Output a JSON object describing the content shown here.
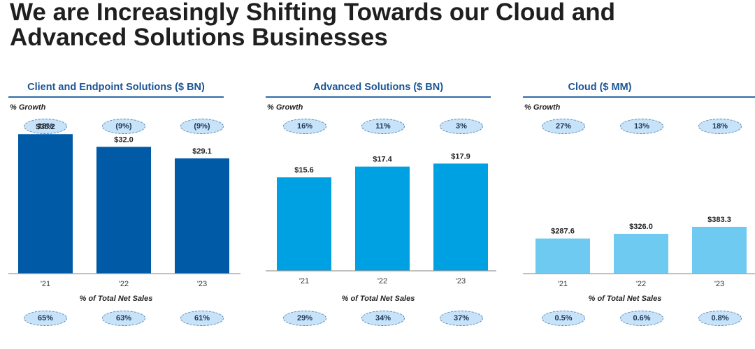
{
  "page": {
    "title_line1": "We are Increasingly Shifting Towards our Cloud and",
    "title_line2": "Advanced Solutions Businesses"
  },
  "labels": {
    "growth": "% Growth",
    "share": "% of Total Net Sales"
  },
  "colors": {
    "title_blue": "#1b5596",
    "client_bar": "#005aa6",
    "advanced_bar": "#00a1e3",
    "cloud_bar": "#6ecaf0",
    "pill_fill": "#c6e3fa"
  },
  "chart_data": [
    {
      "type": "bar",
      "title": "Client and Endpoint Solutions ($ BN)",
      "categories": [
        "'21",
        "'22",
        "'23"
      ],
      "values": [
        35.2,
        32.0,
        29.1
      ],
      "value_labels": [
        "$35.2",
        "$32.0",
        "$29.1"
      ],
      "growth": [
        "13%",
        "(9%)",
        "(9%)"
      ],
      "share_of_total_net_sales": [
        "65%",
        "63%",
        "61%"
      ],
      "xlabel": "",
      "ylabel": "",
      "ylim": [
        0,
        37
      ],
      "grid": false,
      "color": "#005aa6"
    },
    {
      "type": "bar",
      "title": "Advanced Solutions ($ BN)",
      "categories": [
        "'21",
        "'22",
        "'23"
      ],
      "values": [
        15.6,
        17.4,
        17.9
      ],
      "value_labels": [
        "$15.6",
        "$17.4",
        "$17.9"
      ],
      "growth": [
        "16%",
        "11%",
        "3%"
      ],
      "share_of_total_net_sales": [
        "29%",
        "34%",
        "37%"
      ],
      "xlabel": "",
      "ylabel": "",
      "ylim": [
        0,
        24
      ],
      "grid": false,
      "color": "#00a1e3"
    },
    {
      "type": "bar",
      "title": "Cloud ($ MM)",
      "categories": [
        "'21",
        "'22",
        "'23"
      ],
      "values": [
        287.6,
        326.0,
        383.3
      ],
      "value_labels": [
        "$287.6",
        "$326.0",
        "$383.3"
      ],
      "growth": [
        "27%",
        "13%",
        "18%"
      ],
      "share_of_total_net_sales": [
        "0.5%",
        "0.6%",
        "0.8%"
      ],
      "xlabel": "",
      "ylabel": "",
      "ylim": [
        0,
        1200
      ],
      "grid": false,
      "color": "#6ecaf0"
    }
  ]
}
